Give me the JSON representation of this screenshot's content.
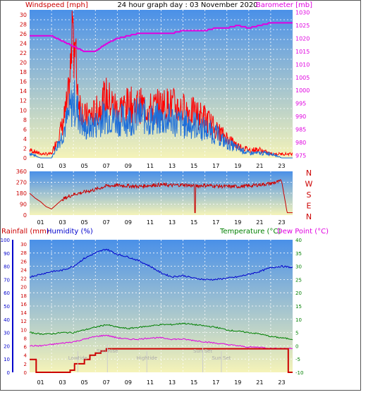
{
  "header": {
    "left": "Windspeed [mph]",
    "center": "24 hour graph day : 03 November 2020",
    "right": "Barometer [mb]"
  },
  "bottom_header": {
    "rain": "Rainfall (mm)",
    "humidity": "Humidity (%)",
    "temperature": "Temperature (°C)",
    "dewpoint": "Dew Point (°C)"
  },
  "colors": {
    "wind": "#ff0000",
    "gust_avg": "#1e6fd9",
    "barometer": "#e000e0",
    "direction": "#cc0000",
    "humidity": "#0000cc",
    "temperature": "#008000",
    "dewpoint": "#e000e0",
    "rain": "#cc0000",
    "sky_top": "#4a90e8",
    "sky_bottom": "#f5f3b8"
  },
  "x_ticks": [
    "01",
    "03",
    "05",
    "07",
    "09",
    "11",
    "13",
    "15",
    "17",
    "19",
    "21",
    "23"
  ],
  "sun_moon_labels": [
    "Lowtide",
    "Sun Rise",
    "Hightide",
    "Sun Set",
    "Sun Set"
  ],
  "chart_data": [
    {
      "type": "line",
      "name": "wind_barometer",
      "y_left_ticks": [
        "0",
        "2",
        "4",
        "6",
        "8",
        "10",
        "12",
        "14",
        "16",
        "18",
        "20",
        "22",
        "24",
        "26",
        "28",
        "30"
      ],
      "y_right_ticks": [
        "975",
        "980",
        "985",
        "990",
        "995",
        "1000",
        "1005",
        "1010",
        "1015",
        "1020",
        "1025",
        "1030"
      ],
      "ylim_left": [
        0,
        31
      ],
      "ylim_right": [
        974,
        1031
      ],
      "barometer": {
        "x": [
          0,
          2,
          3,
          4,
          5,
          6,
          7,
          8,
          9,
          10,
          11,
          12,
          13,
          14,
          15,
          16,
          17,
          18,
          19,
          20,
          21,
          22,
          23,
          24
        ],
        "values": [
          1021,
          1021,
          1019,
          1017,
          1015,
          1015,
          1018,
          1020,
          1021,
          1022,
          1022,
          1022,
          1022,
          1023,
          1023,
          1023,
          1024,
          1024,
          1025,
          1024,
          1025,
          1026,
          1026,
          1026
        ]
      },
      "wind_gust_profile": {
        "x": [
          0,
          1,
          2,
          3,
          3.5,
          4,
          4.5,
          5,
          6,
          7,
          8,
          9,
          10,
          11,
          12,
          13,
          14,
          15,
          16,
          17,
          18,
          19,
          20,
          21,
          22,
          23,
          24
        ],
        "values": [
          2,
          1,
          1,
          8,
          14,
          31,
          14,
          10,
          11,
          15,
          12,
          13,
          13,
          12,
          13,
          13,
          12,
          11,
          10,
          7,
          5,
          3,
          2,
          2,
          1,
          1,
          1
        ]
      },
      "wind_avg_profile": {
        "x": [
          0,
          1,
          2,
          3,
          4,
          5,
          6,
          7,
          8,
          9,
          10,
          11,
          12,
          13,
          14,
          15,
          16,
          17,
          18,
          19,
          20,
          21,
          22,
          23,
          24
        ],
        "values": [
          1,
          0,
          0,
          5,
          12,
          6,
          7,
          9,
          8,
          8,
          9,
          8,
          8,
          8,
          7,
          7,
          6,
          5,
          3,
          2,
          1,
          1,
          1,
          0,
          0
        ]
      }
    },
    {
      "type": "line",
      "name": "wind_direction",
      "y_left_ticks": [
        "360",
        "270",
        "180",
        "90",
        "0"
      ],
      "compass": [
        "N",
        "W",
        "S",
        "E",
        "N"
      ],
      "ylim": [
        0,
        360
      ],
      "x": [
        0,
        0.5,
        1,
        1.5,
        2,
        3,
        4,
        5,
        6,
        7,
        8,
        9,
        10,
        11,
        12,
        13,
        14,
        15,
        16,
        17,
        18,
        19,
        20,
        21,
        22,
        23,
        23.5,
        24
      ],
      "values": [
        180,
        140,
        110,
        70,
        50,
        130,
        170,
        190,
        210,
        240,
        245,
        240,
        235,
        245,
        250,
        245,
        250,
        240,
        245,
        240,
        235,
        235,
        240,
        250,
        260,
        280,
        20,
        20
      ]
    },
    {
      "type": "line",
      "name": "temp_humidity_rain",
      "humidity_ticks": [
        "0",
        "10",
        "20",
        "30",
        "40",
        "50",
        "60",
        "70",
        "80",
        "90",
        "100"
      ],
      "rain_ticks": [
        "0",
        "2",
        "4",
        "6",
        "8",
        "10",
        "12",
        "14",
        "16",
        "18",
        "20",
        "22",
        "24",
        "26",
        "28",
        "30"
      ],
      "temp_ticks": [
        "-10",
        "-5",
        "0",
        "5",
        "10",
        "15",
        "20",
        "25",
        "30",
        "35",
        "40"
      ],
      "humidity": {
        "x": [
          0,
          1,
          2,
          3,
          4,
          5,
          6,
          7,
          8,
          9,
          10,
          11,
          12,
          13,
          14,
          15,
          16,
          17,
          18,
          19,
          20,
          21,
          22,
          23,
          24
        ],
        "values": [
          72,
          74,
          76,
          77,
          80,
          86,
          90,
          93,
          89,
          87,
          84,
          80,
          75,
          72,
          73,
          71,
          70,
          70,
          71,
          72,
          74,
          76,
          79,
          80,
          79
        ]
      },
      "temperature": {
        "x": [
          0,
          1,
          2,
          3,
          4,
          5,
          6,
          7,
          8,
          9,
          10,
          11,
          12,
          13,
          14,
          15,
          16,
          17,
          18,
          19,
          20,
          21,
          22,
          23,
          24
        ],
        "values": [
          5,
          4.5,
          4.5,
          5,
          5,
          6,
          7,
          8,
          7,
          6.5,
          7,
          7.5,
          8,
          8,
          8.5,
          8,
          7.5,
          7,
          6,
          5.5,
          5,
          4.5,
          3.5,
          3,
          2.5
        ]
      },
      "dewpoint": {
        "x": [
          0,
          1,
          2,
          3,
          4,
          5,
          6,
          7,
          8,
          9,
          10,
          11,
          12,
          13,
          14,
          15,
          16,
          17,
          18,
          19,
          20,
          21,
          22,
          23,
          24
        ],
        "values": [
          0,
          0,
          0.5,
          1,
          1.5,
          2.5,
          3.5,
          4,
          3,
          2.5,
          2.5,
          3,
          3,
          2.5,
          2.5,
          2,
          1.5,
          1,
          0.5,
          0,
          -0.5,
          -0.5,
          -1,
          -1,
          -1
        ]
      },
      "rain_cumulative": {
        "x": [
          0,
          0.3,
          0.6,
          3.4,
          3.7,
          4.1,
          5,
          5.5,
          6,
          6.5,
          7,
          23.3,
          23.6,
          24
        ],
        "values": [
          3,
          3,
          0,
          0,
          0.5,
          2,
          3,
          4,
          4.5,
          5,
          5.5,
          5.5,
          0,
          0
        ]
      }
    }
  ]
}
